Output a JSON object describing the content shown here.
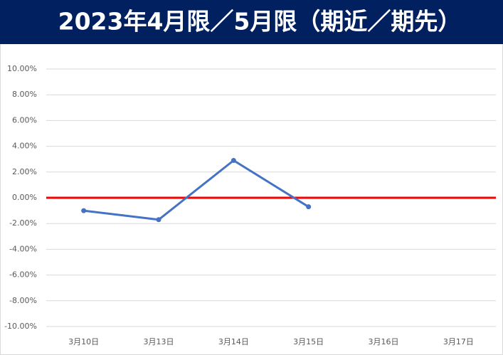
{
  "chart_data": {
    "type": "line",
    "title": "2023年4月限／5月限（期近／期先）",
    "categories": [
      "3月10日",
      "3月13日",
      "3月14日",
      "3月15日",
      "3月16日",
      "3月17日"
    ],
    "series": [
      {
        "color": "#4472c4",
        "values": [
          -1.0,
          -1.7,
          2.9,
          -0.7,
          null,
          null
        ]
      }
    ],
    "reference_line": {
      "value": 0,
      "color": "#ff0000"
    },
    "ylim": [
      -10,
      10
    ],
    "yticks": [
      {
        "value": -10,
        "label": "-10.00%"
      },
      {
        "value": -8,
        "label": "-8.00%"
      },
      {
        "value": -6,
        "label": "-6.00%"
      },
      {
        "value": -4,
        "label": "-4.00%"
      },
      {
        "value": -2,
        "label": "-2.00%"
      },
      {
        "value": 0,
        "label": "0.00%"
      },
      {
        "value": 2,
        "label": "2.00%"
      },
      {
        "value": 4,
        "label": "4.00%"
      },
      {
        "value": 6,
        "label": "6.00%"
      },
      {
        "value": 8,
        "label": "8.00%"
      },
      {
        "value": 10,
        "label": "10.00%"
      }
    ],
    "grid": true
  }
}
